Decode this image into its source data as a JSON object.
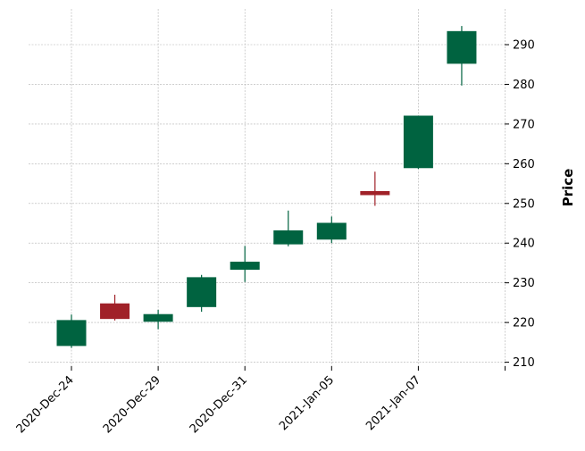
{
  "chart_data": {
    "type": "candlestick",
    "ylabel": "Price",
    "ylim": [
      209,
      299
    ],
    "yticks": [
      210,
      220,
      230,
      240,
      250,
      260,
      270,
      280,
      290
    ],
    "y_axis_side": "right",
    "grid": true,
    "xtick_labels": [
      "2020-Dec-24",
      "2020-Dec-29",
      "2020-Dec-31",
      "2021-Jan-05",
      "2021-Jan-07",
      ""
    ],
    "xtick_index": [
      0,
      2,
      4,
      6,
      8,
      10
    ],
    "colors": {
      "up": "#006340",
      "down": "#A02128",
      "grid": "#b0b0b0"
    },
    "candles": [
      {
        "open": 214.2,
        "high": 222.0,
        "low": 213.6,
        "close": 220.5
      },
      {
        "open": 224.7,
        "high": 227.0,
        "low": 220.5,
        "close": 221.0
      },
      {
        "open": 220.3,
        "high": 223.2,
        "low": 218.3,
        "close": 222.0
      },
      {
        "open": 224.0,
        "high": 232.0,
        "low": 222.7,
        "close": 231.3
      },
      {
        "open": 233.4,
        "high": 239.3,
        "low": 230.2,
        "close": 235.2
      },
      {
        "open": 239.8,
        "high": 248.2,
        "low": 239.2,
        "close": 243.1
      },
      {
        "open": 241.0,
        "high": 246.7,
        "low": 240.0,
        "close": 245.0
      },
      {
        "open": 253.0,
        "high": 258.0,
        "low": 249.4,
        "close": 252.2
      },
      {
        "open": 259.0,
        "high": 272.0,
        "low": 258.7,
        "close": 272.0
      },
      {
        "open": 285.3,
        "high": 294.7,
        "low": 279.7,
        "close": 293.3
      }
    ]
  }
}
